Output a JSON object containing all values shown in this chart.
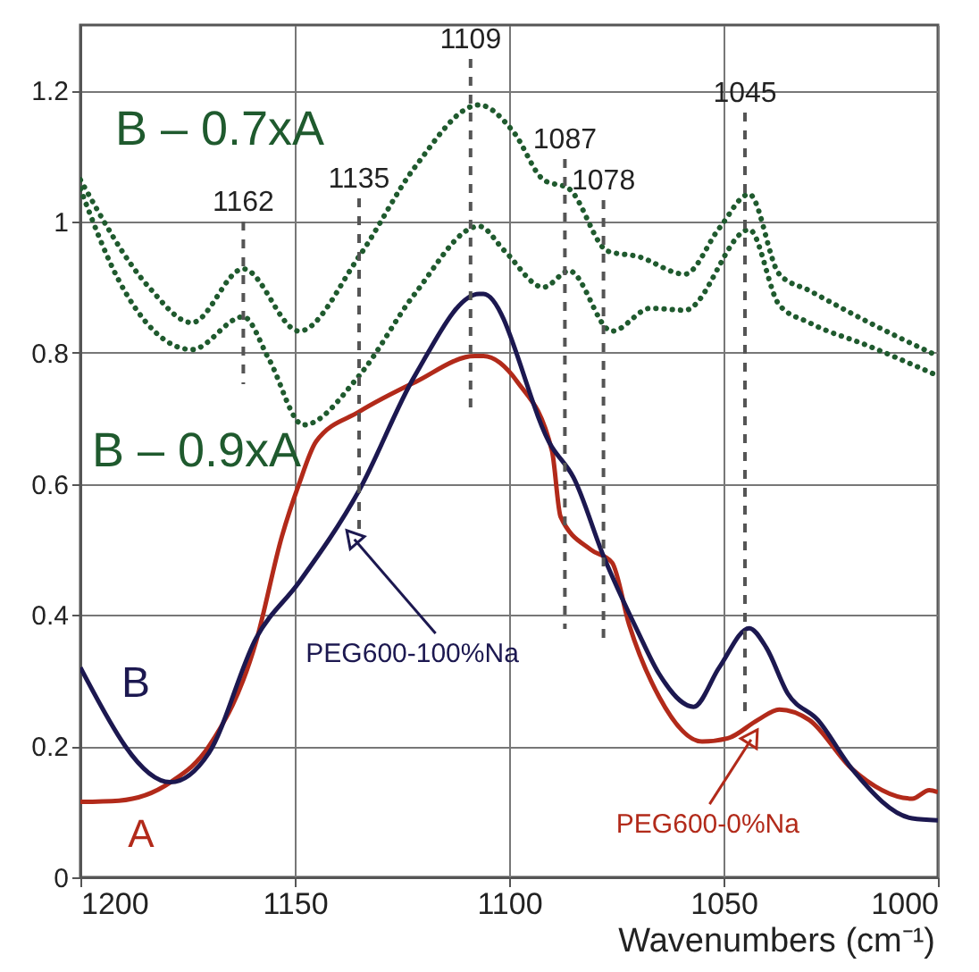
{
  "chart_data": {
    "type": "line",
    "xlabel": "Wavenumbers (cm⁻¹)",
    "xlim": [
      1200,
      1000
    ],
    "xticks": [
      1200,
      1150,
      1100,
      1050,
      1000
    ],
    "ylim": [
      0,
      1.3
    ],
    "yticks": [
      0,
      0.2,
      0.4,
      0.6,
      0.8,
      1,
      1.2
    ],
    "grid": true,
    "marker": "none",
    "series": [
      {
        "name": "A",
        "color": "#b22a1a",
        "line_style": "solid",
        "x": [
          1200,
          1191,
          1179,
          1170,
          1159,
          1153,
          1149,
          1145,
          1135,
          1122,
          1108,
          1106,
          1098,
          1090,
          1088,
          1081,
          1076,
          1072,
          1065,
          1055,
          1049,
          1042,
          1037,
          1030,
          1020,
          1006,
          1002,
          1000
        ],
        "values": [
          0.115,
          0.117,
          0.145,
          0.2,
          0.36,
          0.52,
          0.6,
          0.665,
          0.71,
          0.755,
          0.795,
          0.795,
          0.755,
          0.65,
          0.55,
          0.5,
          0.48,
          0.385,
          0.275,
          0.207,
          0.212,
          0.24,
          0.256,
          0.24,
          0.165,
          0.12,
          0.133,
          0.13
        ]
      },
      {
        "name": "B",
        "color": "#1c1850",
        "line_style": "solid",
        "x": [
          1200,
          1179,
          1170,
          1159,
          1149,
          1135,
          1122,
          1107,
          1106,
          1090,
          1085,
          1078,
          1070,
          1065,
          1057,
          1051,
          1044,
          1040,
          1035,
          1028,
          1020,
          1006,
          1000
        ],
        "values": [
          0.32,
          0.145,
          0.19,
          0.365,
          0.45,
          0.59,
          0.765,
          0.89,
          0.89,
          0.656,
          0.61,
          0.49,
          0.375,
          0.31,
          0.26,
          0.32,
          0.38,
          0.35,
          0.28,
          0.24,
          0.165,
          0.09,
          0.087
        ]
      },
      {
        "name": "B – 0.7xA",
        "color": "#1f5a2e",
        "line_style": "dotted",
        "x": [
          1200,
          1184,
          1174,
          1162,
          1149,
          1135,
          1122,
          1107,
          1099,
          1092,
          1086,
          1077,
          1070,
          1059,
          1051,
          1044,
          1037,
          1030,
          1016,
          1000
        ],
        "values": [
          1.064,
          0.9,
          0.846,
          0.928,
          0.833,
          0.947,
          1.083,
          1.178,
          1.137,
          1.064,
          1.05,
          0.955,
          0.947,
          0.92,
          0.99,
          1.042,
          0.92,
          0.895,
          0.846,
          0.795
        ]
      },
      {
        "name": "B – 0.9xA",
        "color": "#1f5a2e",
        "line_style": "dotted",
        "x": [
          1200,
          1191,
          1174,
          1162,
          1156,
          1148,
          1135,
          1122,
          1107,
          1101,
          1092,
          1086,
          1076,
          1067,
          1059,
          1044,
          1037,
          1030,
          1016,
          1000
        ],
        "values": [
          1.05,
          0.91,
          0.805,
          0.855,
          0.79,
          0.69,
          0.765,
          0.89,
          0.993,
          0.955,
          0.9,
          0.925,
          0.833,
          0.868,
          0.865,
          0.988,
          0.873,
          0.846,
          0.81,
          0.765
        ]
      }
    ],
    "ref_lines": [
      {
        "axis": "x",
        "value": 1162,
        "label": "1162",
        "color": "#555555",
        "line_style": "dashed"
      },
      {
        "axis": "x",
        "value": 1135,
        "label": "1135",
        "color": "#555555",
        "line_style": "dashed"
      },
      {
        "axis": "x",
        "value": 1109,
        "label": "1109",
        "color": "#555555",
        "line_style": "dashed"
      },
      {
        "axis": "x",
        "value": 1087,
        "label": "1087",
        "color": "#555555",
        "line_style": "dashed"
      },
      {
        "axis": "x",
        "value": 1078,
        "label": "1078",
        "color": "#555555",
        "line_style": "dashed"
      },
      {
        "axis": "x",
        "value": 1045,
        "label": "1045",
        "color": "#555555",
        "line_style": "dashed"
      }
    ],
    "annotations": [
      {
        "text": "PEG600-100%Na",
        "x": 1138,
        "y": 0.53
      },
      {
        "text": "PEG600-0%Na",
        "x": 1042,
        "y": 0.226
      }
    ]
  }
}
